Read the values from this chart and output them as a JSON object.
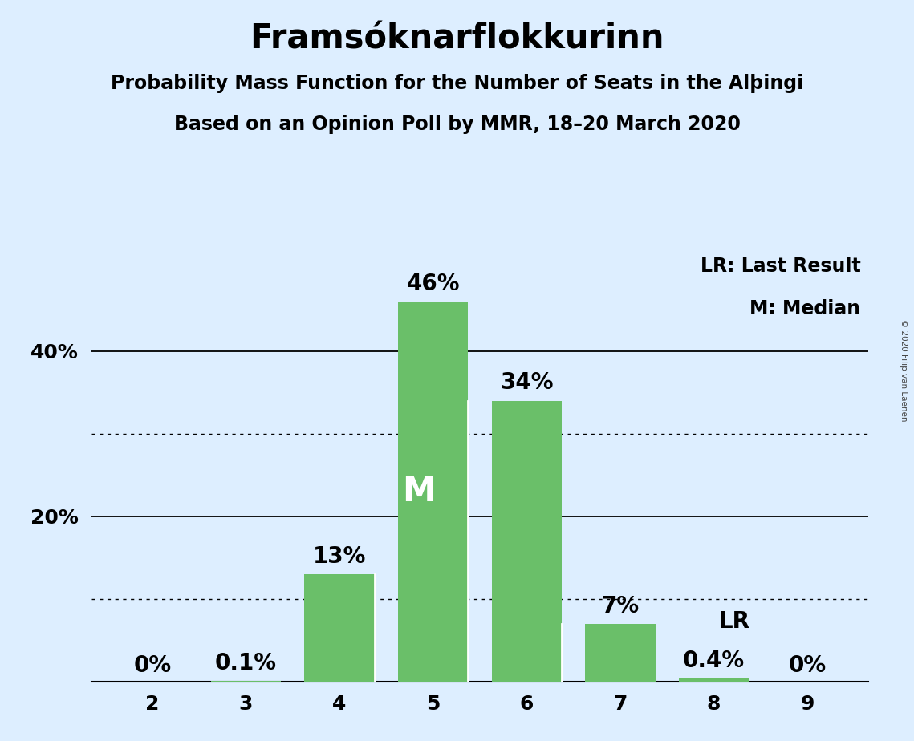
{
  "title": "Framsóknarflokkurinn",
  "subtitle1": "Probability Mass Function for the Number of Seats in the Alþingi",
  "subtitle2": "Based on an Opinion Poll by MMR, 18–20 March 2020",
  "copyright": "© 2020 Filip van Laenen",
  "seats": [
    2,
    3,
    4,
    5,
    6,
    7,
    8,
    9
  ],
  "probabilities": [
    0.0,
    0.001,
    0.13,
    0.46,
    0.34,
    0.07,
    0.004,
    0.0
  ],
  "bar_labels": [
    "0%",
    "0.1%",
    "13%",
    "46%",
    "34%",
    "7%",
    "0.4%",
    "0%"
  ],
  "bar_color": "#6abf69",
  "median_seat": 5,
  "median_label": "M",
  "lr_seat": 8,
  "lr_label": "LR",
  "legend_lr": "LR: Last Result",
  "legend_m": "M: Median",
  "background_color": "#ddeeff",
  "ylim": [
    0,
    0.52
  ],
  "solid_yticks": [
    0.2,
    0.4
  ],
  "dotted_yticks": [
    0.1,
    0.3
  ],
  "bar_width": 0.75,
  "title_fontsize": 30,
  "subtitle_fontsize": 17,
  "tick_fontsize": 18,
  "annotation_fontsize": 20,
  "legend_fontsize": 17,
  "m_fontsize": 30
}
